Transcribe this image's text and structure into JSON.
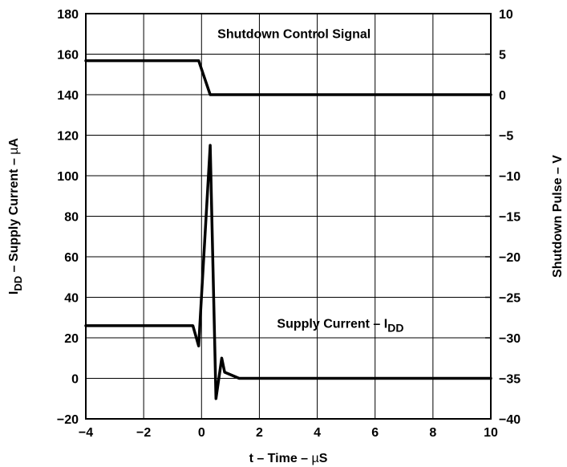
{
  "chart_data": {
    "type": "line",
    "title": "",
    "xlabel": {
      "main": "t – Time – ",
      "mu": "µ",
      "tail": "S"
    },
    "ylabel_left": {
      "main": "I",
      "sub": "DD",
      "tail": " – Supply Current – ",
      "mu": "µ",
      "tail2": "A"
    },
    "ylabel_right": "Shutdown Pulse – V",
    "xlim": [
      -4,
      10
    ],
    "ylim_left": [
      -20,
      180
    ],
    "ylim_right": [
      -40,
      10
    ],
    "xticks": [
      -4,
      -2,
      0,
      2,
      4,
      6,
      8,
      10
    ],
    "yticks_left": [
      -20,
      0,
      20,
      40,
      60,
      80,
      100,
      120,
      140,
      160,
      180
    ],
    "yticks_right": [
      -40,
      -35,
      -30,
      -25,
      -20,
      -15,
      -10,
      -5,
      0,
      5,
      10
    ],
    "grid": true,
    "series": [
      {
        "axis": "right",
        "x": [
          -4,
          -0.1,
          0.3,
          10
        ],
        "y": [
          4.2,
          4.2,
          0,
          0
        ]
      },
      {
        "axis": "left",
        "x": [
          -4,
          -0.3,
          -0.1,
          0.3,
          0.5,
          0.7,
          0.8,
          1.3,
          10
        ],
        "y": [
          26,
          26,
          16,
          115,
          -10,
          10,
          3,
          0,
          0
        ]
      }
    ],
    "annotations": [
      {
        "text": "Shutdown Control Signal",
        "x": 3.2,
        "y_left": 168
      },
      {
        "main": "Supply Current – I",
        "sub": "DD",
        "x": 4.8,
        "y_left": 25
      }
    ]
  }
}
